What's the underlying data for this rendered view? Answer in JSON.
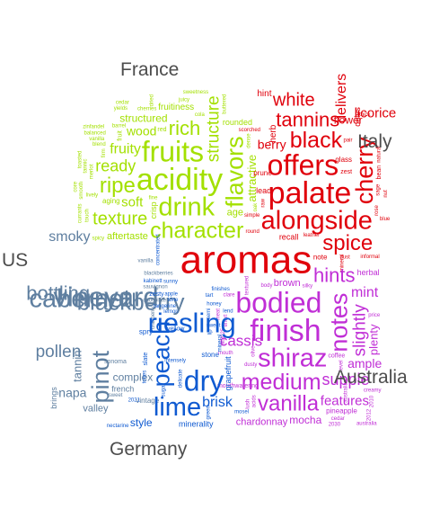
{
  "colors": {
    "france": "#a3e000",
    "italy": "#e0000b",
    "us": "#5f7fa0",
    "australia": "#c02ed6",
    "germany": "#0f5ad1"
  },
  "groups": [
    {
      "name": "France",
      "color": "#a3e000",
      "words": [
        "acidity",
        "fruits",
        "drink",
        "flavors",
        "character",
        "ripe",
        "rich",
        "texture",
        "structure",
        "ready",
        "fruity",
        "soft",
        "wood",
        "attractive",
        "structured",
        "age",
        "aftertaste",
        "fruitiness",
        "crisp",
        "rounded",
        "aging",
        "red",
        "fruit",
        "firm",
        "lively",
        "dense",
        "barrel",
        "blend",
        "merlot",
        "cola",
        "cherries",
        "tannic",
        "vanilla",
        "smooth",
        "touch",
        "juicy",
        "balanced",
        "toasted",
        "dried",
        "fine",
        "core",
        "yields",
        "zinfandel",
        "buttered",
        "sweetness",
        "spicy",
        "currants",
        "cedar",
        "oak"
      ]
    },
    {
      "name": "Italy",
      "color": "#e0000b",
      "words": [
        "palate",
        "offers",
        "alongside",
        "cherry",
        "black",
        "spice",
        "tannins",
        "white",
        "delivers",
        "licorice",
        "leather",
        "flower",
        "berry",
        "herb",
        "lead",
        "prune",
        "glass",
        "hint",
        "doles",
        "recall",
        "note",
        "zest",
        "bean",
        "sage",
        "pair",
        "rose",
        "dust",
        "informal",
        "natural",
        "thick",
        "simple",
        "mineral",
        "round",
        "raw",
        "nut",
        "scorched",
        "blue"
      ]
    },
    {
      "name": "US",
      "color": "#5f7fa0",
      "words": [
        "vineyard",
        "cabernet",
        "blackberry",
        "pinot",
        "bottling",
        "chocolate",
        "pollen",
        "sauvignon",
        "cranberry",
        "blackberries",
        "smoky",
        "complex",
        "napa",
        "tannin",
        "french",
        "valley",
        "vintage",
        "sonoma",
        "brings",
        "vanilla",
        "sweet"
      ]
    },
    {
      "name": "Australia",
      "color": "#c02ed6",
      "words": [
        "finish",
        "bodied",
        "shiraz",
        "notes",
        "medium",
        "vanilla",
        "hints",
        "cassis",
        "slightly",
        "supple",
        "mint",
        "features",
        "ample",
        "plenty",
        "mocha",
        "brown",
        "chardonnay",
        "mouthwatering",
        "textured",
        "herbal",
        "pineapple",
        "coffee",
        "australian",
        "olive",
        "dusty",
        "level",
        "body",
        "price",
        "acids",
        "creamy",
        "silky",
        "lush",
        "cedar",
        "2010",
        "2012",
        "2030",
        "australia",
        "bit2025",
        "effort",
        "mouth",
        "meat",
        "clare"
      ]
    },
    {
      "name": "Germany",
      "color": "#0f5ad1",
      "words": [
        "riesling",
        "dry",
        "lime",
        "peach",
        "lemon",
        "sweet",
        "tangerine",
        "honey",
        "mineral",
        "apple",
        "brisk",
        "finishes",
        "kabinett",
        "concentrated",
        "style",
        "stone",
        "spry",
        "yellow",
        "grapefruit",
        "minerality",
        "intensely",
        "zesty",
        "slate",
        "delicate",
        "tone",
        "tones",
        "sunny",
        "tart",
        "sugar",
        "mosel",
        "nectarine",
        "semi",
        "2021",
        "green",
        "lip",
        "lend"
      ]
    }
  ],
  "center_word": {
    "text": "aromas",
    "color": "#e0000b"
  },
  "labels": [
    {
      "id": "france",
      "text": "France"
    },
    {
      "id": "italy",
      "text": "Italy"
    },
    {
      "id": "us",
      "text": "US"
    },
    {
      "id": "australia",
      "text": "Australia"
    },
    {
      "id": "germany",
      "text": "Germany"
    }
  ]
}
